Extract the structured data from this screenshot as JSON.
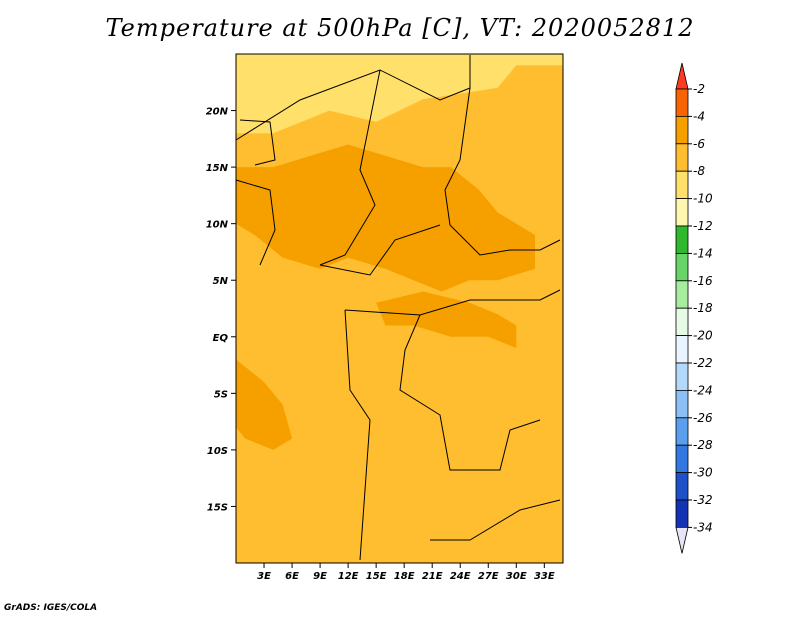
{
  "chart_data": {
    "type": "heatmap",
    "title": "Temperature at 500hPa [C], VT: 2020052812",
    "xlabel": "",
    "ylabel": "",
    "x_ticks": [
      "3E",
      "6E",
      "9E",
      "12E",
      "15E",
      "18E",
      "21E",
      "24E",
      "27E",
      "30E",
      "33E"
    ],
    "y_ticks": [
      "20N",
      "15N",
      "10N",
      "5N",
      "EQ",
      "5S",
      "10S",
      "15S"
    ],
    "xlim": [
      0,
      35
    ],
    "ylim": [
      -20,
      25
    ],
    "colorbar": {
      "levels": [
        "-2",
        "-4",
        "-6",
        "-8",
        "-10",
        "-12",
        "-14",
        "-16",
        "-18",
        "-20",
        "-22",
        "-24",
        "-26",
        "-28",
        "-30",
        "-32",
        "-34"
      ],
      "colors": [
        "#ff3b1f",
        "#f86304",
        "#f6a000",
        "#ffbd30",
        "#ffe06a",
        "#fff6b0",
        "#2eb82e",
        "#66d466",
        "#a8eca0",
        "#e6fae6",
        "#e8f4ff",
        "#b4d8fa",
        "#8cc0f5",
        "#5a9eee",
        "#3278e0",
        "#1e50c8",
        "#1432b4",
        "#0a1478",
        "#e6e6f6"
      ]
    },
    "regions": [
      {
        "level": "-8",
        "poly": [
          [
            0,
            25
          ],
          [
            35,
            25
          ],
          [
            35,
            24
          ],
          [
            30,
            24
          ],
          [
            28,
            22
          ],
          [
            20,
            21
          ],
          [
            15,
            19
          ],
          [
            10,
            20
          ],
          [
            4,
            18
          ],
          [
            0,
            18
          ]
        ]
      },
      {
        "level": "-4",
        "poly": [
          [
            0,
            15
          ],
          [
            4,
            15
          ],
          [
            8,
            16
          ],
          [
            12,
            17
          ],
          [
            16,
            16
          ],
          [
            20,
            15
          ],
          [
            23,
            15
          ],
          [
            26,
            13
          ],
          [
            28,
            11
          ],
          [
            30,
            10
          ],
          [
            32,
            9
          ],
          [
            32,
            6
          ],
          [
            28,
            5
          ],
          [
            25,
            5
          ],
          [
            22,
            4
          ],
          [
            19,
            5
          ],
          [
            16,
            6
          ],
          [
            12,
            7
          ],
          [
            9,
            6
          ],
          [
            5,
            7
          ],
          [
            2,
            9
          ],
          [
            0,
            10
          ]
        ]
      },
      {
        "level": "-4",
        "poly": [
          [
            15,
            3
          ],
          [
            20,
            4
          ],
          [
            25,
            3
          ],
          [
            28,
            2
          ],
          [
            30,
            1
          ],
          [
            30,
            -1
          ],
          [
            27,
            0
          ],
          [
            23,
            0
          ],
          [
            19,
            1
          ],
          [
            16,
            1
          ]
        ]
      },
      {
        "level": "-4",
        "poly": [
          [
            0,
            -2
          ],
          [
            3,
            -4
          ],
          [
            5,
            -6
          ],
          [
            6,
            -9
          ],
          [
            4,
            -10
          ],
          [
            1,
            -9
          ],
          [
            0,
            -8
          ]
        ]
      },
      {
        "level": "-6",
        "poly": [
          [
            28,
            -6
          ],
          [
            35,
            -6
          ],
          [
            35,
            -20
          ],
          [
            22,
            -20
          ],
          [
            20,
            -16
          ],
          [
            24,
            -14
          ],
          [
            27,
            -12
          ],
          [
            28,
            -9
          ]
        ]
      }
    ],
    "annotations": [
      "GrADS: IGES/COLA"
    ]
  },
  "credit": "GrADS: IGES/COLA"
}
